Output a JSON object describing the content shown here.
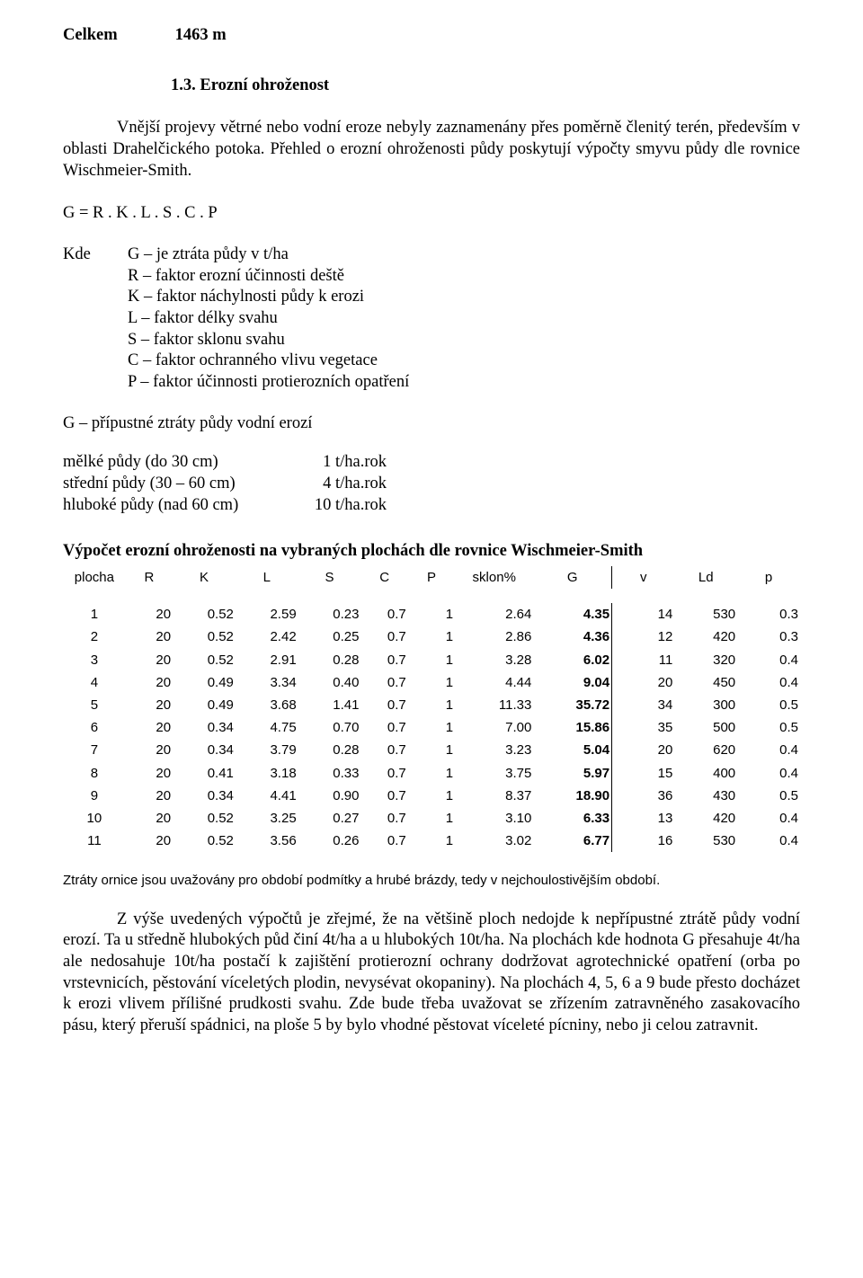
{
  "total": {
    "label": "Celkem",
    "value": "1463 m"
  },
  "section_heading": "1.3. Erozní ohroženost",
  "intro_para": "Vnější projevy větrné nebo vodní eroze nebyly zaznamenány přes poměrně členitý terén, především v oblasti Drahelčického potoka. Přehled o erozní ohroženosti půdy poskytují výpočty smyvu půdy dle rovnice Wischmeier-Smith.",
  "formula": "G = R . K . L . S . C . P",
  "kde_label": "Kde",
  "defs": [
    "G – je ztráta půdy v t/ha",
    "R – faktor erozní účinnosti deště",
    "K – faktor náchylnosti půdy k erozi",
    "L – faktor délky svahu",
    "S – faktor sklonu svahu",
    "C – faktor ochranného vlivu vegetace",
    "P – faktor účinnosti protierozních opatření"
  ],
  "g_line": "G – přípustné ztráty půdy vodní erozí",
  "soil_rows": [
    {
      "label": "mělké půdy (do 30 cm)",
      "value": "1 t/ha.rok"
    },
    {
      "label": "střední půdy (30 – 60 cm)",
      "value": "4 t/ha.rok"
    },
    {
      "label": "hluboké půdy (nad 60 cm)",
      "value": "10 t/ha.rok"
    }
  ],
  "calc_heading": "Výpočet erozní ohroženosti na vybraných plochách dle rovnice Wischmeier-Smith",
  "table": {
    "columns": [
      "plocha",
      "R",
      "K",
      "L",
      "S",
      "C",
      "P",
      "sklon%",
      "G",
      "v",
      "Ld",
      "p"
    ],
    "col_widths_pct": [
      8,
      6,
      8,
      8,
      8,
      6,
      6,
      10,
      10,
      8,
      8,
      8
    ],
    "rows": [
      [
        "1",
        "20",
        "0.52",
        "2.59",
        "0.23",
        "0.7",
        "1",
        "2.64",
        "4.35",
        "14",
        "530",
        "0.3"
      ],
      [
        "2",
        "20",
        "0.52",
        "2.42",
        "0.25",
        "0.7",
        "1",
        "2.86",
        "4.36",
        "12",
        "420",
        "0.3"
      ],
      [
        "3",
        "20",
        "0.52",
        "2.91",
        "0.28",
        "0.7",
        "1",
        "3.28",
        "6.02",
        "11",
        "320",
        "0.4"
      ],
      [
        "4",
        "20",
        "0.49",
        "3.34",
        "0.40",
        "0.7",
        "1",
        "4.44",
        "9.04",
        "20",
        "450",
        "0.4"
      ],
      [
        "5",
        "20",
        "0.49",
        "3.68",
        "1.41",
        "0.7",
        "1",
        "11.33",
        "35.72",
        "34",
        "300",
        "0.5"
      ],
      [
        "6",
        "20",
        "0.34",
        "4.75",
        "0.70",
        "0.7",
        "1",
        "7.00",
        "15.86",
        "35",
        "500",
        "0.5"
      ],
      [
        "7",
        "20",
        "0.34",
        "3.79",
        "0.28",
        "0.7",
        "1",
        "3.23",
        "5.04",
        "20",
        "620",
        "0.4"
      ],
      [
        "8",
        "20",
        "0.41",
        "3.18",
        "0.33",
        "0.7",
        "1",
        "3.75",
        "5.97",
        "15",
        "400",
        "0.4"
      ],
      [
        "9",
        "20",
        "0.34",
        "4.41",
        "0.90",
        "0.7",
        "1",
        "8.37",
        "18.90",
        "36",
        "430",
        "0.5"
      ],
      [
        "10",
        "20",
        "0.52",
        "3.25",
        "0.27",
        "0.7",
        "1",
        "3.10",
        "6.33",
        "13",
        "420",
        "0.4"
      ],
      [
        "11",
        "20",
        "0.52",
        "3.56",
        "0.26",
        "0.7",
        "1",
        "3.02",
        "6.77",
        "16",
        "530",
        "0.4"
      ]
    ]
  },
  "afternote": "Ztráty ornice jsou uvažovány pro období podmítky a hrubé brázdy, tedy v nejchoulostivějším období.",
  "closing_para": "Z výše uvedených výpočtů je zřejmé, že na většině ploch nedojde k nepřípustné ztrátě půdy vodní erozí. Ta u středně hlubokých půd činí 4t/ha a u hlubokých 10t/ha. Na plochách kde hodnota G přesahuje 4t/ha ale nedosahuje 10t/ha postačí k zajištění protierozní ochrany dodržovat agrotechnické opatření (orba po vrstevnicích, pěstování víceletých plodin, nevysévat okopaniny). Na plochách 4, 5, 6 a 9 bude přesto docházet k erozi vlivem přílišné prudkosti svahu. Zde bude třeba uvažovat se zřízením zatravněného zasakovacího pásu, který přeruší spádnici, na ploše 5 by bylo vhodné pěstovat víceleté pícniny, nebo ji celou zatravnit."
}
